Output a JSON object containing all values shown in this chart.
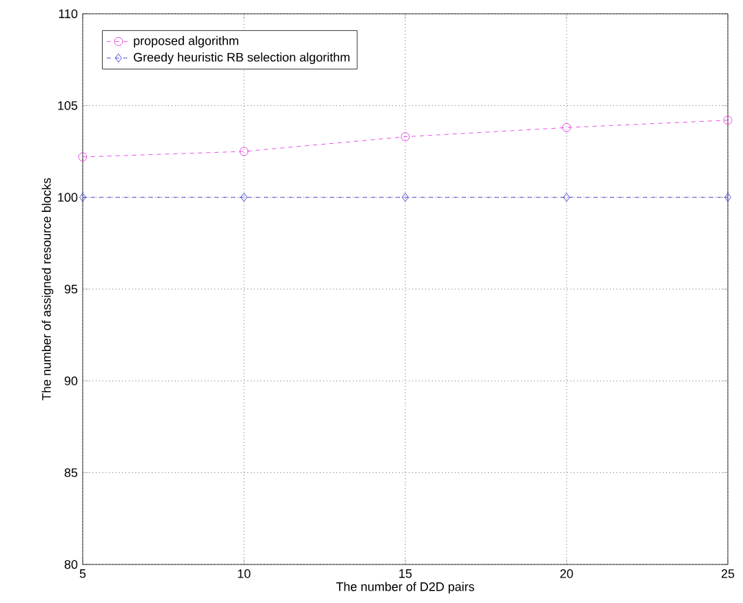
{
  "chart_data": {
    "type": "line",
    "xlabel": "The number of D2D pairs",
    "ylabel": "The number of assigned resource blocks",
    "x": [
      5,
      10,
      15,
      20,
      25
    ],
    "xlim": [
      5,
      25
    ],
    "xticks": [
      5,
      10,
      15,
      20,
      25
    ],
    "ylim": [
      80,
      110
    ],
    "yticks": [
      80,
      85,
      90,
      95,
      100,
      105,
      110
    ],
    "series": [
      {
        "name": "proposed algorithm",
        "color": "#e020e0",
        "values": [
          102.2,
          102.5,
          103.3,
          103.8,
          104.2
        ],
        "marker": "circle",
        "line_style": "dashed"
      },
      {
        "name": "Greedy heuristic RB selection algorithm",
        "color": "#2020d0",
        "values": [
          100,
          100,
          100,
          100,
          100
        ],
        "marker": "diamond",
        "line_style": "dashed"
      }
    ],
    "grid": true,
    "legend": "top left"
  }
}
